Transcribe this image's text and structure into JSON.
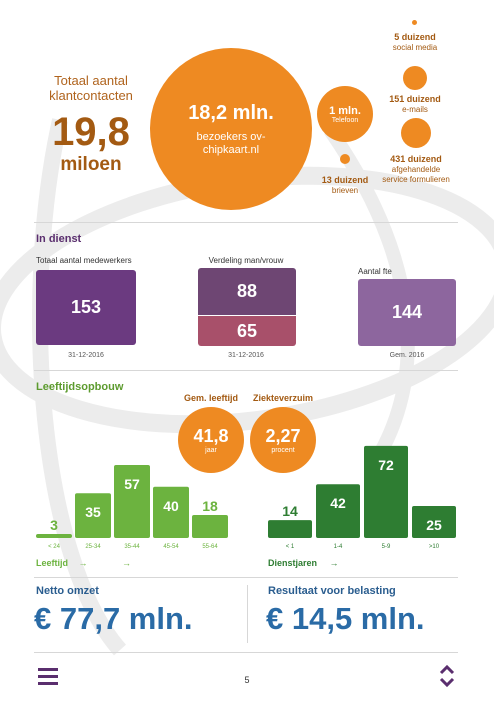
{
  "contacts": {
    "title": "Totaal aantal klantcontacten",
    "total_value": "19,8",
    "total_unit": "miloen",
    "main_value": "18,2 mln.",
    "main_label": "bezoekers ov-chipkaart.nl",
    "phone_value": "1 mln.",
    "phone_label": "Telefoon",
    "letters_value": "13 duizend",
    "letters_label": "brieven",
    "social_value": "5 duizend",
    "social_label": "social media",
    "emails_value": "151 duizend",
    "emails_label": "e-mails",
    "forms_value": "431 duizend",
    "forms_label": "afgehandelde service formulieren"
  },
  "staff": {
    "heading": "In dienst",
    "total_label": "Totaal aantal medewerkers",
    "total_value": "153",
    "total_date": "31-12-2016",
    "gender_label": "Verdeling man/vrouw",
    "men_value": "88",
    "women_value": "65",
    "gender_date": "31-12-2016",
    "fte_label": "Aantal fte",
    "fte_value": "144",
    "fte_date": "Gem. 2016",
    "colors": {
      "total": "#6b3a80",
      "men": "#6e4673",
      "women": "#a8506a",
      "fte": "#8d669e"
    }
  },
  "age": {
    "heading": "Leeftijdsopbouw",
    "avg_title": "Gem. leeftijd",
    "avg_value": "41,8",
    "avg_unit": "jaar",
    "sick_title": "Ziekteverzuim",
    "sick_value": "2,27",
    "sick_unit": "procent",
    "axis_label": "Leeftijd",
    "axis_arrow_1": "→",
    "axis_arrow_2": "→"
  },
  "service": {
    "axis_label": "Dienstjaren",
    "axis_arrow": "→"
  },
  "finance": {
    "revenue_label": "Netto omzet",
    "revenue_value": "€ 77,7 mln.",
    "result_label": "Resultaat voor belasting",
    "result_value": "€ 14,5 mln."
  },
  "footer": {
    "page_number": "5",
    "menu_icon": "hamburger-menu-icon",
    "nav_icon": "up-down-chevron-icon"
  },
  "chart_data": [
    {
      "type": "bar",
      "categories": [
        "< 24",
        "25-34",
        "35-44",
        "45-54",
        "55-64"
      ],
      "values": [
        3,
        35,
        57,
        40,
        18
      ],
      "xlabel": "Leeftijd",
      "color": "#6cb33f"
    },
    {
      "type": "bar",
      "categories": [
        "< 1",
        "1-4",
        "5-9",
        ">10"
      ],
      "values": [
        14,
        42,
        72,
        25
      ],
      "xlabel": "Dienstjaren",
      "color": "#2e7d32"
    }
  ]
}
